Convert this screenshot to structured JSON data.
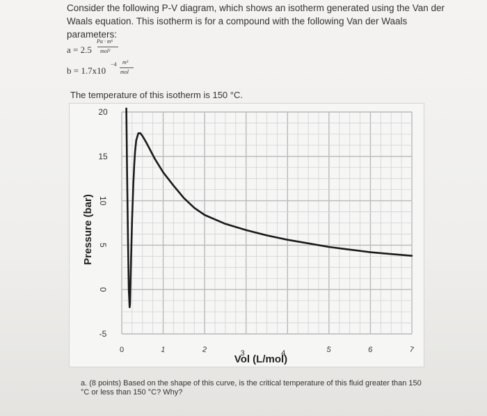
{
  "intro": "Consider the following P-V diagram, which shows an isotherm generated using the Van der Waals equation. This isotherm is for a compound with the following Van der Waals parameters:",
  "param_a": {
    "lhs": "a = 2.5",
    "unit_num": "Pa · m⁶",
    "unit_den": "mol²"
  },
  "param_b": {
    "lhs": "b = 1.7x10",
    "exponent": "−4",
    "unit_num": "m³",
    "unit_den": "mol"
  },
  "temperature_text": "The temperature of this isotherm is 150 °C.",
  "question": "a. (8 points) Based on the shape of this curve, is the critical temperature of this fluid greater than 150 °C or less than 150 °C? Why?",
  "chart_data": {
    "type": "line",
    "xlabel": "Vol (L/mol)",
    "ylabel": "Pressure (bar)",
    "xlim": [
      0,
      7
    ],
    "ylim": [
      -5,
      20
    ],
    "x_ticks": [
      "0",
      "1",
      "2",
      "3",
      "4",
      "5",
      "6",
      "7"
    ],
    "y_ticks": [
      "20",
      "15",
      "10",
      "5",
      "0",
      "-5"
    ],
    "grid": true,
    "line_color": "#1a1a1a",
    "series": [
      {
        "x": [
          0.11,
          0.13,
          0.15,
          0.17,
          0.19,
          0.2,
          0.22,
          0.25,
          0.28,
          0.3,
          0.32,
          0.35,
          0.4,
          0.45,
          0.5,
          0.55,
          0.6,
          0.7,
          0.8,
          1.0,
          1.25,
          1.5,
          1.75,
          2.0,
          2.5,
          3.0,
          3.5,
          4.0,
          4.5,
          5.0,
          5.5,
          6.0,
          6.5,
          7.0
        ],
        "y": [
          20.5,
          13.0,
          6.0,
          0.0,
          -2.0,
          -1.6,
          2.5,
          8.0,
          12.0,
          14.0,
          15.5,
          16.8,
          17.6,
          17.6,
          17.3,
          16.9,
          16.5,
          15.6,
          14.7,
          13.2,
          11.7,
          10.3,
          9.2,
          8.4,
          7.4,
          6.7,
          6.1,
          5.6,
          5.2,
          4.8,
          4.5,
          4.2,
          4.0,
          3.8
        ]
      }
    ]
  }
}
